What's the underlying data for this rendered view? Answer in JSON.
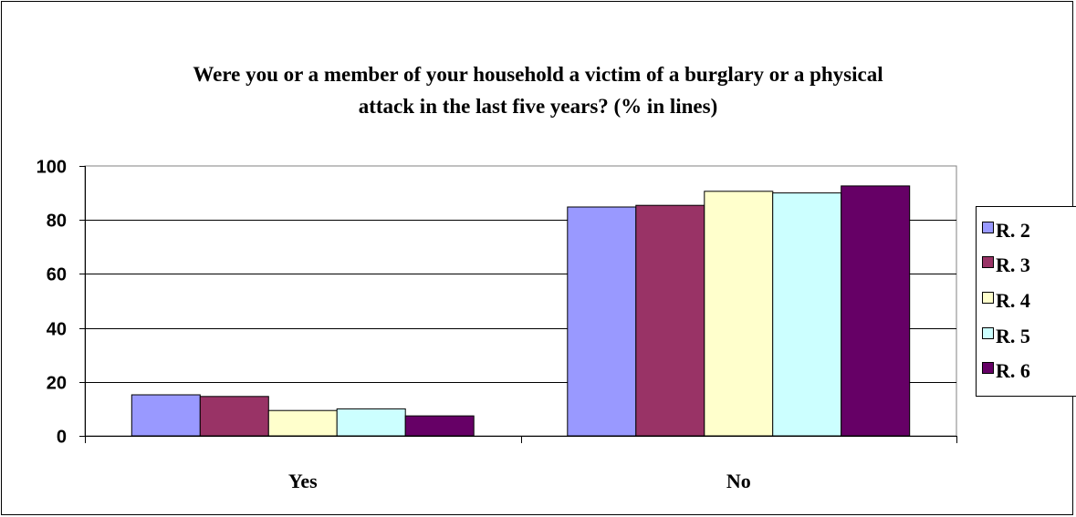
{
  "chart_data": {
    "type": "bar",
    "title_lines": [
      "Were  you or a member of your household a victim of a burglary or a physical",
      "attack in the last five years? (% in lines)"
    ],
    "categories": [
      "Yes",
      "No"
    ],
    "series": [
      {
        "name": "R. 2",
        "color": "#9999ff",
        "values": [
          15.2,
          84.8
        ]
      },
      {
        "name": "R. 3",
        "color": "#993366",
        "values": [
          14.6,
          85.4
        ]
      },
      {
        "name": "R. 4",
        "color": "#ffffcc",
        "values": [
          9.4,
          90.6
        ]
      },
      {
        "name": "R. 5",
        "color": "#ccffff",
        "values": [
          10.0,
          90.0
        ]
      },
      {
        "name": "R. 6",
        "color": "#660066",
        "values": [
          7.4,
          92.6
        ]
      }
    ],
    "ylim": [
      0,
      100
    ],
    "yticks": [
      "0",
      "20",
      "40",
      "60",
      "80",
      "100"
    ],
    "grid": true,
    "legend_position": "right"
  }
}
